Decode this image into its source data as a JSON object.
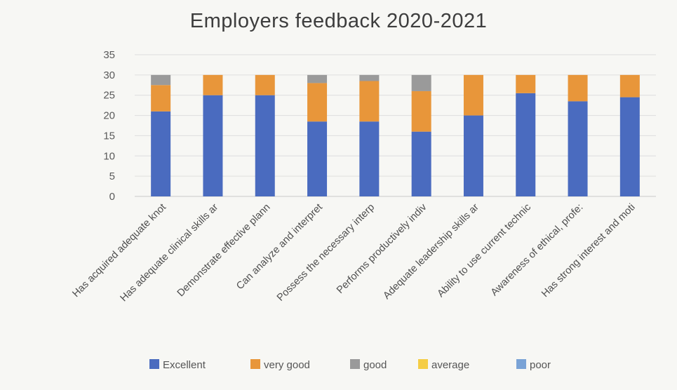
{
  "chart_data": {
    "type": "bar",
    "stacked": true,
    "title": "Employers feedback 2020-2021",
    "xlabel": "",
    "ylabel": "",
    "ylim": [
      0,
      35
    ],
    "yticks": [
      0,
      5,
      10,
      15,
      20,
      25,
      30,
      35
    ],
    "grid": true,
    "legend_position": "bottom",
    "categories": [
      "Has acquired adequate knot",
      "Has adequate clinical skills ar",
      "Demonstrate effective plann",
      "Can analyze and interpret",
      "Possess the necessary interp",
      "Performs productively indiv",
      "Adequate leadership skills ar",
      "Ability to use current technic",
      "Awareness of ethical, profe:",
      "Has strong interest and moti"
    ],
    "series": [
      {
        "name": "Excellent",
        "color": "#4a6bbf",
        "values": [
          21,
          25,
          25,
          18.5,
          18.5,
          16,
          20,
          25.5,
          23.5,
          24.5
        ]
      },
      {
        "name": "very good",
        "color": "#e8963a",
        "values": [
          6.5,
          5,
          5,
          9.5,
          10,
          10,
          10,
          4.5,
          6.5,
          5.5
        ]
      },
      {
        "name": "good",
        "color": "#9a9a9a",
        "values": [
          2.5,
          0,
          0,
          2,
          1.5,
          4,
          0,
          0,
          0,
          0
        ]
      },
      {
        "name": "average",
        "color": "#f5cd45",
        "values": [
          0,
          0,
          0,
          0,
          0,
          0,
          0,
          0,
          0,
          0
        ]
      },
      {
        "name": "poor",
        "color": "#7aa3d6",
        "values": [
          0,
          0,
          0,
          0,
          0,
          0,
          0,
          0,
          0,
          0
        ]
      }
    ]
  }
}
